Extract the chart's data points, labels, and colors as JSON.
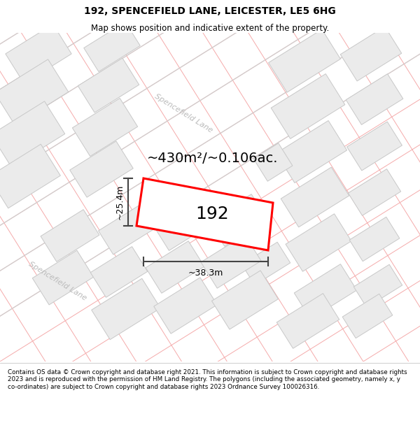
{
  "title": "192, SPENCEFIELD LANE, LEICESTER, LE5 6HG",
  "subtitle": "Map shows position and indicative extent of the property.",
  "footer": "Contains OS data © Crown copyright and database right 2021. This information is subject to Crown copyright and database rights 2023 and is reproduced with the permission of HM Land Registry. The polygons (including the associated geometry, namely x, y co-ordinates) are subject to Crown copyright and database rights 2023 Ordnance Survey 100026316.",
  "area_text": "~430m²/~0.106ac.",
  "width_text": "~38.3m",
  "height_text": "~25.4m",
  "property_number": "192",
  "map_bg": "#ffffff",
  "building_color": "#ebebeb",
  "building_edge_color": "#c8c8c8",
  "grid_line_color": "#f5aaaa",
  "road_line_color": "#d0d0d0",
  "property_fill": "#ffffff",
  "property_edge": "#ff0000",
  "dim_line_color": "#444444",
  "title_fontsize": 10,
  "subtitle_fontsize": 8.5,
  "area_fontsize": 14,
  "number_fontsize": 18,
  "dim_fontsize": 9,
  "road_label_color": "#bbbbbb",
  "road_label_fontsize": 8
}
